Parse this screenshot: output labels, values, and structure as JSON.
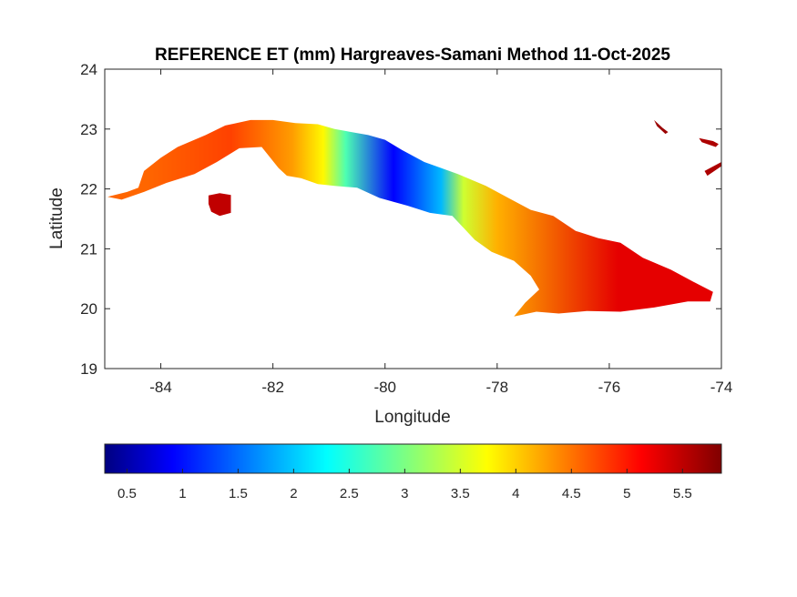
{
  "chart_data": {
    "type": "heatmap",
    "title": "REFERENCE ET (mm) Hargreaves-Samani Method  11-Oct-2025",
    "xlabel": "Longitude",
    "ylabel": "Latitude",
    "xlim": [
      -85,
      -74
    ],
    "ylim": [
      19,
      24
    ],
    "x_ticks": [
      -84,
      -82,
      -80,
      -78,
      -76,
      -74
    ],
    "y_ticks": [
      19,
      20,
      21,
      22,
      23,
      24
    ],
    "grid": false,
    "colormap": "jet",
    "colorbar": {
      "location": "bottom",
      "range": [
        0.3,
        5.85
      ],
      "ticks": [
        0.5,
        1,
        1.5,
        2,
        2.5,
        3,
        3.5,
        4,
        4.5,
        5,
        5.5
      ]
    },
    "region_values": [
      {
        "lon_range": [
          -85.0,
          -83.5
        ],
        "et_mm": 4.6
      },
      {
        "lon_range": [
          -83.5,
          -82.0
        ],
        "et_mm": 4.8
      },
      {
        "lon_range": [
          -82.0,
          -81.3
        ],
        "et_mm": 4.3
      },
      {
        "lon_range": [
          -81.3,
          -80.9
        ],
        "et_mm": 3.8
      },
      {
        "lon_range": [
          -80.9,
          -80.5
        ],
        "et_mm": 2.8
      },
      {
        "lon_range": [
          -80.5,
          -79.2
        ],
        "et_mm": 1.0
      },
      {
        "lon_range": [
          -79.2,
          -78.8
        ],
        "et_mm": 2.0
      },
      {
        "lon_range": [
          -78.8,
          -78.4
        ],
        "et_mm": 3.5
      },
      {
        "lon_range": [
          -78.4,
          -77.6
        ],
        "et_mm": 4.2
      },
      {
        "lon_range": [
          -77.6,
          -74.1
        ],
        "et_mm": 5.3
      }
    ],
    "island_outline": [
      [
        -84.95,
        21.87
      ],
      [
        -84.6,
        21.95
      ],
      [
        -84.4,
        22.02
      ],
      [
        -84.3,
        22.3
      ],
      [
        -84.0,
        22.52
      ],
      [
        -83.7,
        22.7
      ],
      [
        -83.2,
        22.9
      ],
      [
        -82.85,
        23.06
      ],
      [
        -82.4,
        23.15
      ],
      [
        -82.0,
        23.15
      ],
      [
        -81.6,
        23.1
      ],
      [
        -81.2,
        23.08
      ],
      [
        -80.9,
        23.0
      ],
      [
        -80.6,
        22.95
      ],
      [
        -80.3,
        22.9
      ],
      [
        -80.0,
        22.82
      ],
      [
        -79.7,
        22.65
      ],
      [
        -79.3,
        22.45
      ],
      [
        -79.0,
        22.35
      ],
      [
        -78.7,
        22.25
      ],
      [
        -78.2,
        22.05
      ],
      [
        -77.8,
        21.85
      ],
      [
        -77.4,
        21.65
      ],
      [
        -77.0,
        21.55
      ],
      [
        -76.6,
        21.3
      ],
      [
        -76.2,
        21.18
      ],
      [
        -75.8,
        21.1
      ],
      [
        -75.4,
        20.85
      ],
      [
        -74.9,
        20.65
      ],
      [
        -74.5,
        20.45
      ],
      [
        -74.15,
        20.28
      ],
      [
        -74.2,
        20.12
      ],
      [
        -74.6,
        20.12
      ],
      [
        -75.2,
        20.02
      ],
      [
        -75.8,
        19.95
      ],
      [
        -76.4,
        19.96
      ],
      [
        -76.9,
        19.92
      ],
      [
        -77.3,
        19.95
      ],
      [
        -77.7,
        19.87
      ],
      [
        -77.5,
        20.1
      ],
      [
        -77.25,
        20.32
      ],
      [
        -77.4,
        20.55
      ],
      [
        -77.7,
        20.8
      ],
      [
        -78.1,
        20.95
      ],
      [
        -78.4,
        21.15
      ],
      [
        -78.8,
        21.55
      ],
      [
        -79.2,
        21.6
      ],
      [
        -79.6,
        21.72
      ],
      [
        -80.1,
        21.85
      ],
      [
        -80.5,
        22.02
      ],
      [
        -80.9,
        22.05
      ],
      [
        -81.2,
        22.08
      ],
      [
        -81.5,
        22.18
      ],
      [
        -81.75,
        22.22
      ],
      [
        -81.9,
        22.35
      ],
      [
        -82.2,
        22.7
      ],
      [
        -82.6,
        22.68
      ],
      [
        -83.0,
        22.45
      ],
      [
        -83.4,
        22.25
      ],
      [
        -83.9,
        22.1
      ],
      [
        -84.3,
        21.95
      ],
      [
        -84.7,
        21.82
      ]
    ],
    "small_islands": [
      {
        "name_unprinted": "isla-juventud",
        "outline": [
          [
            -83.15,
            21.89
          ],
          [
            -82.95,
            21.93
          ],
          [
            -82.75,
            21.9
          ],
          [
            -82.75,
            21.6
          ],
          [
            -82.95,
            21.55
          ],
          [
            -83.1,
            21.62
          ],
          [
            -83.15,
            21.75
          ]
        ],
        "et_mm": 5.5
      },
      {
        "name_unprinted": "bahamas-andros",
        "outline": [
          [
            -75.2,
            23.15
          ],
          [
            -75.05,
            23.02
          ],
          [
            -74.95,
            22.95
          ],
          [
            -75.0,
            22.92
          ],
          [
            -75.15,
            23.05
          ]
        ],
        "et_mm": 5.7
      },
      {
        "name_unprinted": "bahamas-east-1",
        "outline": [
          [
            -74.4,
            22.85
          ],
          [
            -74.15,
            22.8
          ],
          [
            -74.05,
            22.75
          ],
          [
            -74.1,
            22.7
          ],
          [
            -74.35,
            22.78
          ]
        ],
        "et_mm": 5.6
      },
      {
        "name_unprinted": "bahamas-east-2",
        "outline": [
          [
            -74.3,
            22.3
          ],
          [
            -74.0,
            22.45
          ],
          [
            -74.0,
            22.38
          ],
          [
            -74.25,
            22.22
          ]
        ],
        "et_mm": 5.6
      }
    ]
  }
}
